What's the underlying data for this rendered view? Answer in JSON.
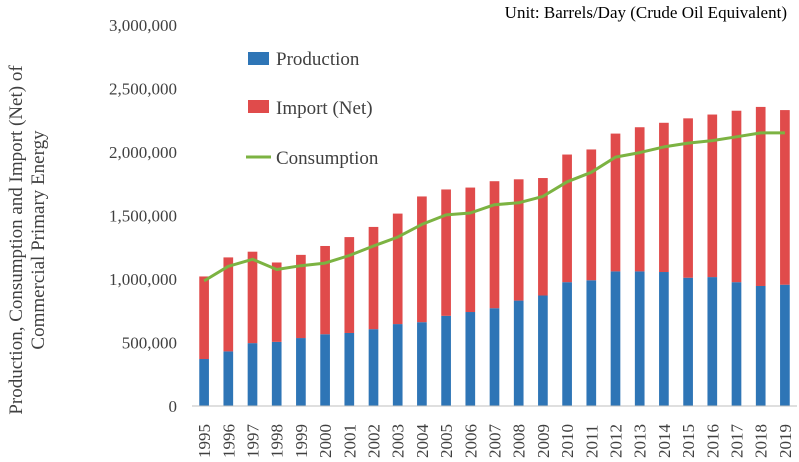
{
  "chart_data": {
    "type": "bar",
    "stacked": true,
    "unit_note": "Unit: Barrels/Day (Crude Oil Equivalent)",
    "ylabel_line1": "Production, Consumption and Import (Net) of",
    "ylabel_line2": "Commercial Primary Energy",
    "xlabel": "",
    "ylim": [
      0,
      3000000
    ],
    "y_ticks": [
      0,
      500000,
      1000000,
      1500000,
      2000000,
      2500000,
      3000000
    ],
    "y_tick_labels": [
      "0",
      "500,000",
      "1,000,000",
      "1,500,000",
      "2,000,000",
      "2,500,000",
      "3,000,000"
    ],
    "categories": [
      "1995",
      "1996",
      "1997",
      "1998",
      "1999",
      "2000",
      "2001",
      "2002",
      "2003",
      "2004",
      "2005",
      "2006",
      "2007",
      "2008",
      "2009",
      "2010",
      "2011",
      "2012",
      "2013",
      "2014",
      "2015",
      "2016",
      "2017",
      "2018",
      "2019"
    ],
    "series": [
      {
        "name": "Production",
        "kind": "bar",
        "color": "#2e75b6",
        "values": [
          370000,
          430000,
          495000,
          505000,
          535000,
          565000,
          575000,
          605000,
          645000,
          660000,
          710000,
          740000,
          770000,
          830000,
          870000,
          975000,
          990000,
          1060000,
          1060000,
          1055000,
          1010000,
          1015000,
          975000,
          945000,
          955000
        ]
      },
      {
        "name": "Import (Net)",
        "kind": "bar",
        "color": "#e04b4b",
        "values": [
          650000,
          740000,
          720000,
          625000,
          655000,
          695000,
          755000,
          805000,
          870000,
          990000,
          995000,
          980000,
          1000000,
          955000,
          925000,
          1005000,
          1030000,
          1085000,
          1135000,
          1175000,
          1255000,
          1280000,
          1350000,
          1410000,
          1375000
        ]
      },
      {
        "name": "Consumption",
        "kind": "line",
        "color": "#7cb342",
        "values": [
          985000,
          1100000,
          1155000,
          1075000,
          1105000,
          1125000,
          1185000,
          1260000,
          1330000,
          1430000,
          1505000,
          1520000,
          1585000,
          1600000,
          1650000,
          1765000,
          1840000,
          1960000,
          1995000,
          2040000,
          2070000,
          2090000,
          2120000,
          2150000,
          2150000
        ]
      }
    ],
    "legend_position": "top-left-inside"
  }
}
